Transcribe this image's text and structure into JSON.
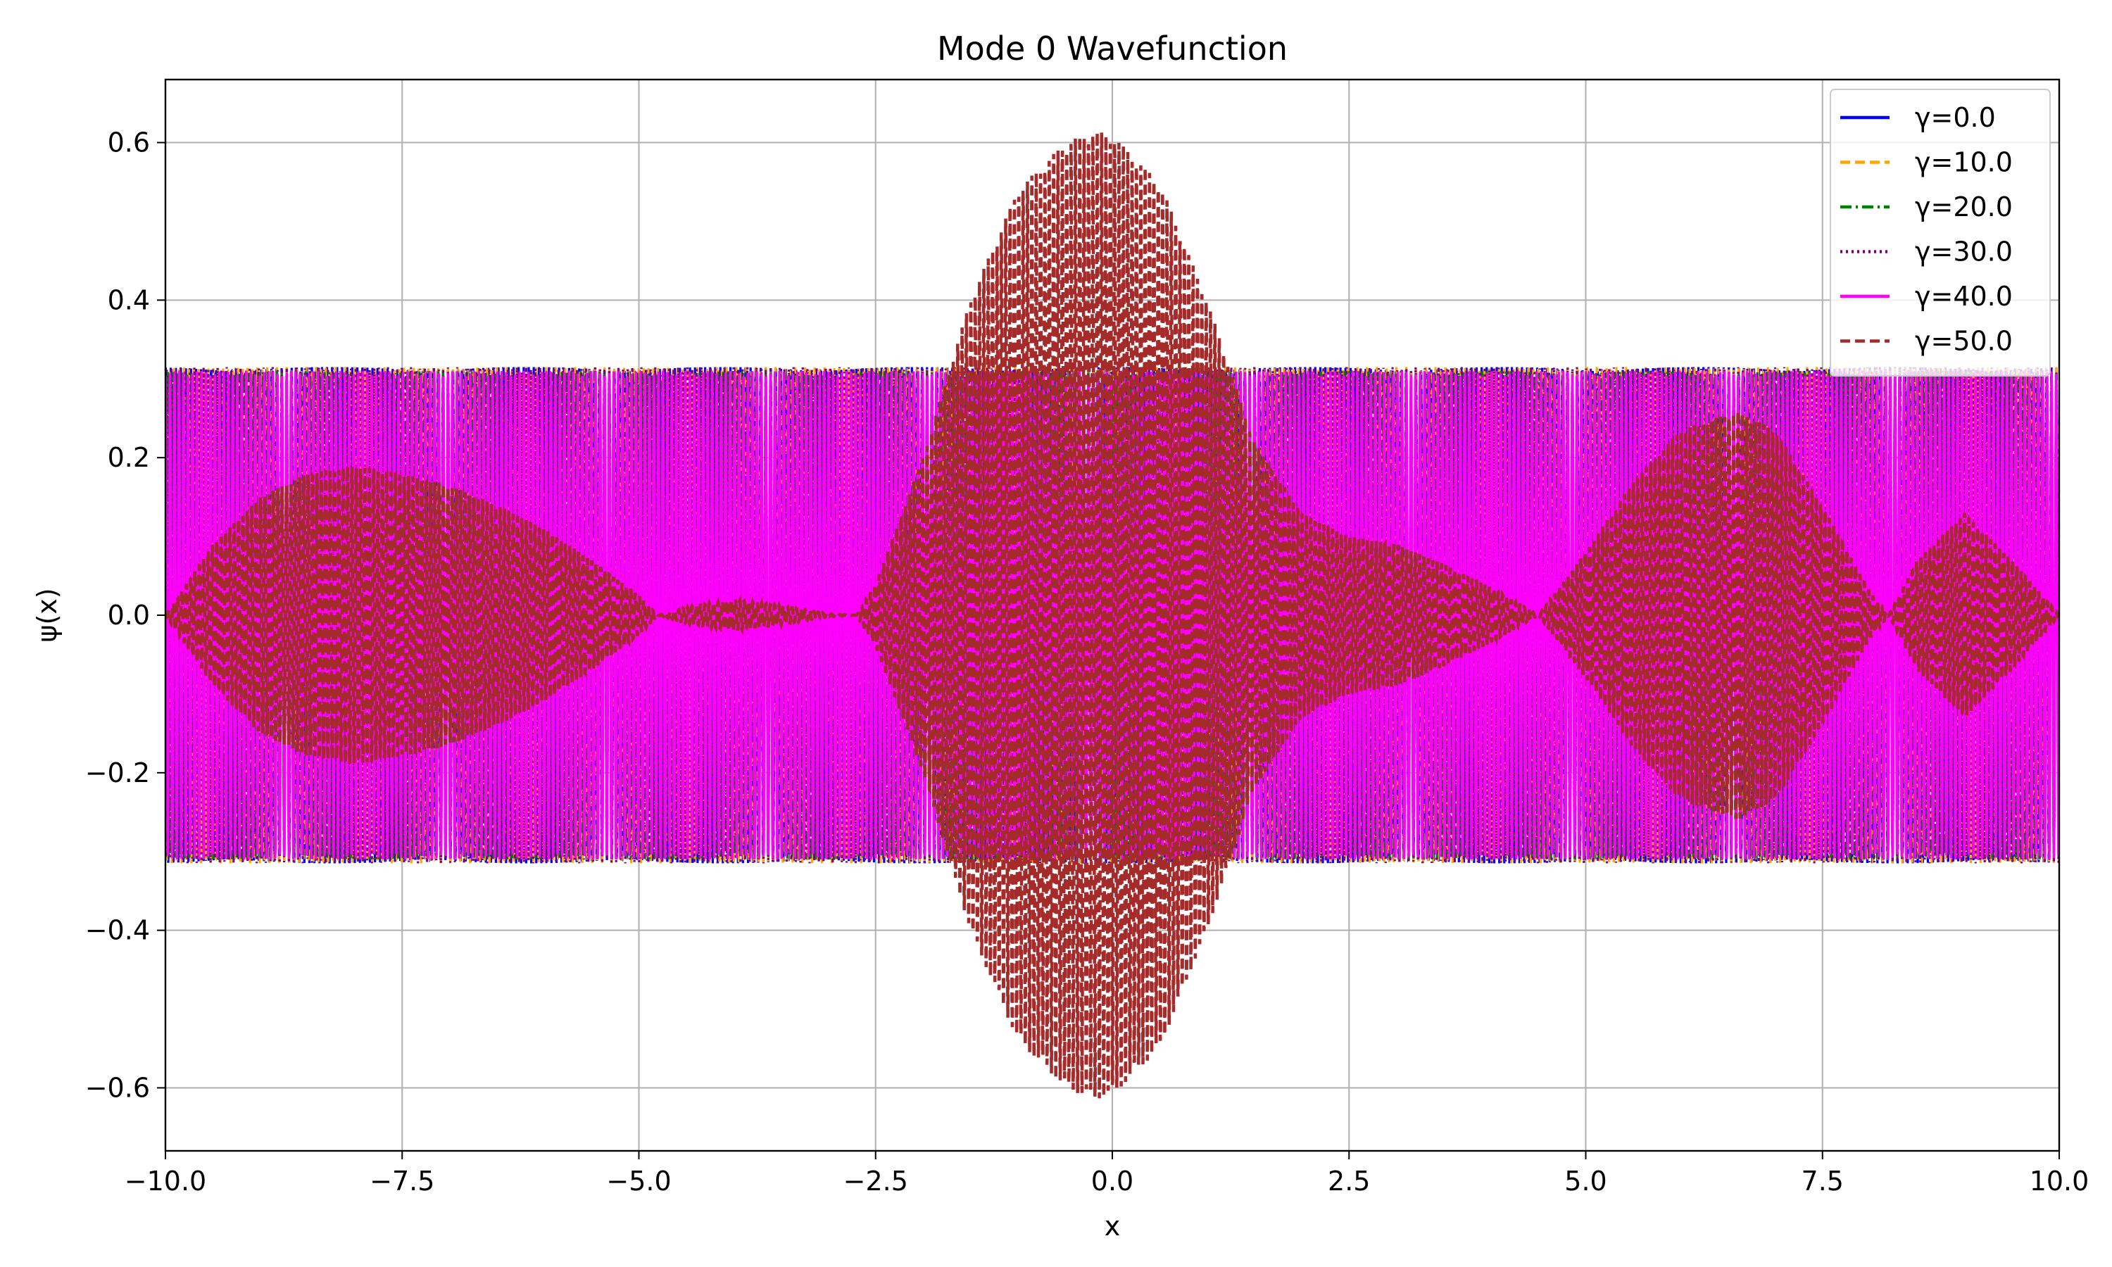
{
  "chart_data": {
    "type": "line",
    "title": "Mode 0 Wavefunction",
    "xlabel": "x",
    "ylabel": "ψ(x)",
    "xlim": [
      -10,
      10
    ],
    "ylim": [
      -0.68,
      0.68
    ],
    "x_ticks": [
      -10,
      -7.5,
      -5,
      -2.5,
      0,
      2.5,
      5,
      7.5,
      10
    ],
    "x_tick_labels": [
      "−10.0",
      "−7.5",
      "−5.0",
      "−2.5",
      "0.0",
      "2.5",
      "5.0",
      "7.5",
      "10.0"
    ],
    "y_ticks": [
      -0.6,
      -0.4,
      -0.2,
      0,
      0.2,
      0.4,
      0.6
    ],
    "y_tick_labels": [
      "−0.6",
      "−0.4",
      "−0.2",
      "0.0",
      "0.2",
      "0.4",
      "0.6"
    ],
    "grid": true,
    "legend_position": "top-right",
    "series": [
      {
        "name": "γ=0.0",
        "color": "#0000ff",
        "style": "solid",
        "envelope_x": [
          -10,
          10
        ],
        "envelope_amplitude": [
          0.315,
          0.315
        ]
      },
      {
        "name": "γ=10.0",
        "color": "#ffa500",
        "style": "dashed",
        "envelope_x": [
          -10,
          10
        ],
        "envelope_amplitude": [
          0.315,
          0.315
        ]
      },
      {
        "name": "γ=20.0",
        "color": "#008000",
        "style": "dashdot",
        "envelope_x": [
          -10,
          10
        ],
        "envelope_amplitude": [
          0.31,
          0.31
        ]
      },
      {
        "name": "γ=30.0",
        "color": "#800080",
        "style": "dotted",
        "envelope_x": [
          -10,
          10
        ],
        "envelope_amplitude": [
          0.315,
          0.315
        ]
      },
      {
        "name": "γ=40.0",
        "color": "#ff00ff",
        "style": "solid",
        "envelope_x": [
          -10,
          10
        ],
        "envelope_amplitude": [
          0.31,
          0.31
        ]
      },
      {
        "name": "γ=50.0",
        "color": "#a52a2a",
        "style": "dashed",
        "envelope_x": [
          -10,
          -9.5,
          -9,
          -8.5,
          -8,
          -7.5,
          -7,
          -6.5,
          -6,
          -5.5,
          -5,
          -4.8,
          -4.5,
          -4,
          -3.5,
          -3,
          -2.7,
          -2.5,
          -2,
          -1.5,
          -1,
          -0.5,
          -0.2,
          0,
          0.5,
          1,
          1.5,
          2,
          2.5,
          3,
          3.5,
          4,
          4.5,
          5,
          5.5,
          6,
          6.6,
          7,
          7.5,
          8,
          8.2,
          8.5,
          9,
          9.5,
          10
        ],
        "envelope_amplitude": [
          0,
          0.09,
          0.15,
          0.18,
          0.19,
          0.18,
          0.165,
          0.14,
          0.11,
          0.07,
          0.025,
          0,
          0.01,
          0.02,
          0.012,
          0.002,
          0,
          0.04,
          0.2,
          0.4,
          0.54,
          0.6,
          0.615,
          0.61,
          0.55,
          0.4,
          0.22,
          0.13,
          0.1,
          0.09,
          0.065,
          0.035,
          0,
          0.08,
          0.17,
          0.235,
          0.26,
          0.235,
          0.14,
          0.03,
          0,
          0.07,
          0.13,
          0.07,
          0
        ]
      }
    ]
  }
}
